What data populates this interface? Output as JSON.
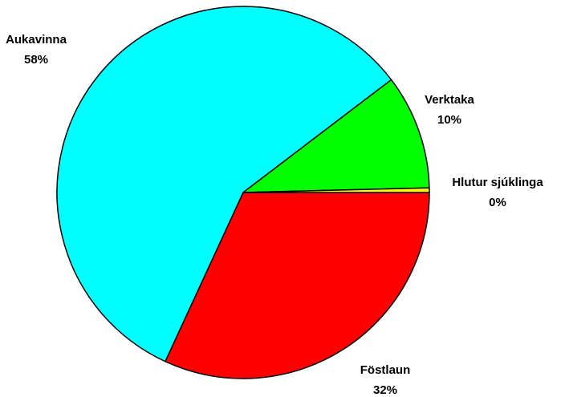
{
  "chart_data": {
    "type": "pie",
    "categories": [
      "Föstlaun",
      "Aukavinna",
      "Verktaka",
      "Hlutur sjúklinga"
    ],
    "values": [
      32,
      58,
      10,
      0.4
    ],
    "value_labels": [
      "32%",
      "58%",
      "10%",
      "0%"
    ],
    "colors": [
      "#ff0000",
      "#00ffff",
      "#00ff00",
      "#ffff00"
    ]
  }
}
